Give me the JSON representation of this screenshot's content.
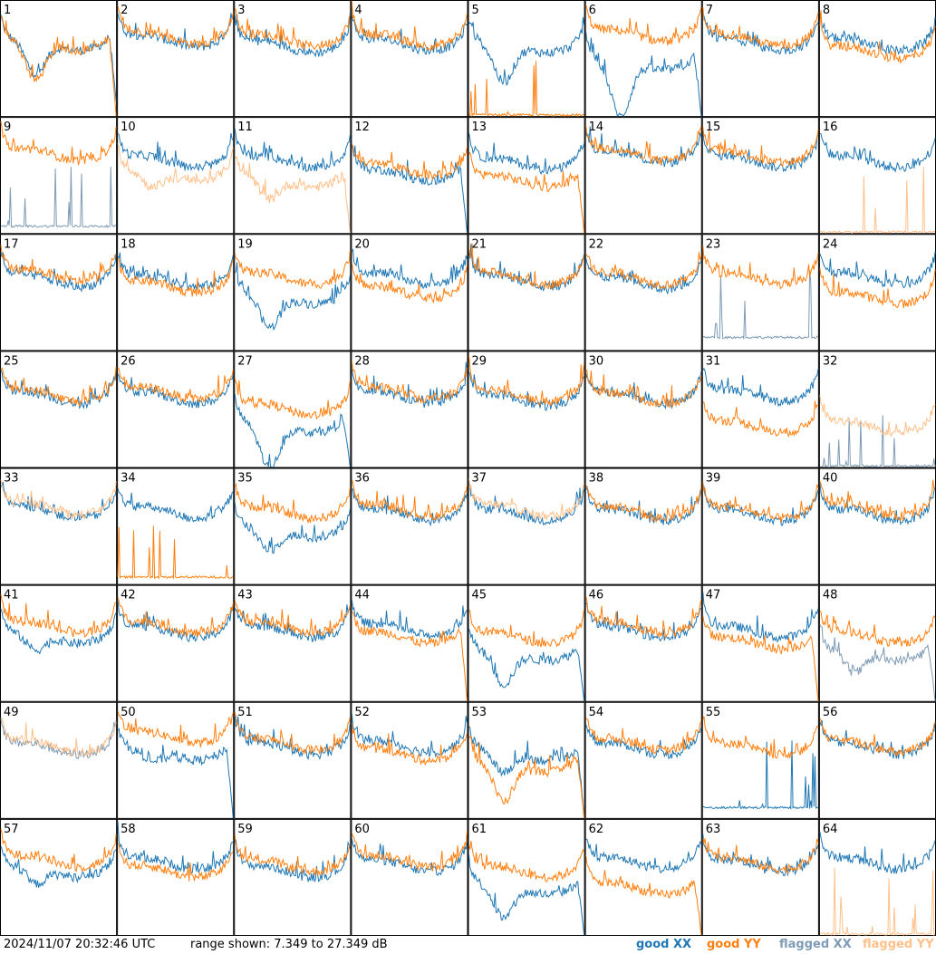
{
  "footer": {
    "timestamp": "2024/11/07 20:32:46 UTC",
    "range_text": "range shown: 7.349 to 27.349 dB"
  },
  "legend": [
    {
      "label": "good XX",
      "color": "#1f77b4"
    },
    {
      "label": "good YY",
      "color": "#ff7f0e"
    },
    {
      "label": "flagged XX",
      "color": "#7f9bb5"
    },
    {
      "label": "flagged YY",
      "color": "#ffc08a"
    }
  ],
  "chart_data": {
    "type": "line",
    "layout": "8x8 small multiples",
    "ylim": [
      7.349,
      27.349
    ],
    "yunit": "dB",
    "panels": [
      {
        "id": "1",
        "xx": "good",
        "yy": "good",
        "xx_level": 0.62,
        "yy_level": 0.62,
        "xx_dip": 0.3,
        "yy_dip": 0.35,
        "xx_drop": 0.85,
        "yy_drop": 1.0
      },
      {
        "id": "2",
        "xx": "good",
        "yy": "good",
        "xx_level": 0.65,
        "yy_level": 0.68,
        "xx_dip": 0,
        "yy_dip": 0,
        "xx_drop": 0,
        "yy_drop": 0
      },
      {
        "id": "3",
        "xx": "good",
        "yy": "good",
        "xx_level": 0.6,
        "yy_level": 0.66,
        "xx_dip": 0,
        "yy_dip": 0,
        "xx_drop": 0,
        "yy_drop": 0
      },
      {
        "id": "4",
        "xx": "good",
        "yy": "good",
        "xx_level": 0.62,
        "yy_level": 0.66,
        "xx_dip": 0,
        "yy_dip": 0,
        "xx_drop": 0,
        "yy_drop": 0
      },
      {
        "id": "5",
        "xx": "good",
        "yy": "good",
        "xx_level": 0.6,
        "yy_level": 0.0,
        "xx_dip": 0.35,
        "yy_dip": 0,
        "xx_drop": 0,
        "yy_drop": 0
      },
      {
        "id": "6",
        "xx": "good",
        "yy": "good",
        "xx_level": 0.45,
        "yy_level": 0.7,
        "xx_dip": 0.5,
        "yy_dip": 0,
        "xx_drop": 1.0,
        "yy_drop": 0
      },
      {
        "id": "7",
        "xx": "good",
        "yy": "good",
        "xx_level": 0.62,
        "yy_level": 0.66,
        "xx_dip": 0,
        "yy_dip": 0,
        "xx_drop": 0,
        "yy_drop": 0
      },
      {
        "id": "8",
        "xx": "good",
        "yy": "good",
        "xx_level": 0.62,
        "yy_level": 0.55,
        "xx_dip": 0,
        "yy_dip": 0,
        "xx_drop": 0,
        "yy_drop": 0
      },
      {
        "id": "9",
        "xx": "flagged",
        "yy": "good",
        "xx_level": 0.05,
        "yy_level": 0.68,
        "xx_dip": 0,
        "yy_dip": 0,
        "xx_drop": 0,
        "yy_drop": 0
      },
      {
        "id": "10",
        "xx": "good",
        "yy": "flagged",
        "xx_level": 0.62,
        "yy_level": 0.5,
        "xx_dip": 0,
        "yy_dip": 0.15,
        "xx_drop": 0,
        "yy_drop": 0
      },
      {
        "id": "11",
        "xx": "good",
        "yy": "flagged",
        "xx_level": 0.62,
        "yy_level": 0.45,
        "xx_dip": 0,
        "yy_dip": 0.2,
        "xx_drop": 0,
        "yy_drop": 1.0
      },
      {
        "id": "12",
        "xx": "good",
        "yy": "good",
        "xx_level": 0.5,
        "yy_level": 0.55,
        "xx_dip": 0,
        "yy_dip": 0,
        "xx_drop": 1.0,
        "yy_drop": 0
      },
      {
        "id": "13",
        "xx": "good",
        "yy": "good",
        "xx_level": 0.6,
        "yy_level": 0.45,
        "xx_dip": 0,
        "yy_dip": 0,
        "xx_drop": 0,
        "yy_drop": 1.0
      },
      {
        "id": "14",
        "xx": "good",
        "yy": "good",
        "xx_level": 0.66,
        "yy_level": 0.68,
        "xx_dip": 0,
        "yy_dip": 0,
        "xx_drop": 0,
        "yy_drop": 0
      },
      {
        "id": "15",
        "xx": "good",
        "yy": "good",
        "xx_level": 0.62,
        "yy_level": 0.66,
        "xx_dip": 0,
        "yy_dip": 0,
        "xx_drop": 0,
        "yy_drop": 0
      },
      {
        "id": "16",
        "xx": "good",
        "yy": "flagged",
        "xx_level": 0.62,
        "yy_level": 0.0,
        "xx_dip": 0,
        "yy_dip": 0,
        "xx_drop": 0,
        "yy_drop": 0
      },
      {
        "id": "17",
        "xx": "good",
        "yy": "good",
        "xx_level": 0.6,
        "yy_level": 0.65,
        "xx_dip": 0,
        "yy_dip": 0,
        "xx_drop": 0,
        "yy_drop": 0
      },
      {
        "id": "18",
        "xx": "good",
        "yy": "good",
        "xx_level": 0.6,
        "yy_level": 0.55,
        "xx_dip": 0,
        "yy_dip": 0,
        "xx_drop": 0,
        "yy_drop": 0
      },
      {
        "id": "19",
        "xx": "good",
        "yy": "good",
        "xx_level": 0.45,
        "yy_level": 0.62,
        "xx_dip": 0.3,
        "yy_dip": 0,
        "xx_drop": 0,
        "yy_drop": 0
      },
      {
        "id": "20",
        "xx": "good",
        "yy": "good",
        "xx_level": 0.62,
        "yy_level": 0.5,
        "xx_dip": 0,
        "yy_dip": 0,
        "xx_drop": 0,
        "yy_drop": 0
      },
      {
        "id": "21",
        "xx": "good",
        "yy": "good",
        "xx_level": 0.6,
        "yy_level": 0.62,
        "xx_dip": 0,
        "yy_dip": 0,
        "xx_drop": 0,
        "yy_drop": 0
      },
      {
        "id": "22",
        "xx": "good",
        "yy": "good",
        "xx_level": 0.58,
        "yy_level": 0.62,
        "xx_dip": 0,
        "yy_dip": 0,
        "xx_drop": 0,
        "yy_drop": 0
      },
      {
        "id": "23",
        "xx": "flagged",
        "yy": "good",
        "xx_level": 0.1,
        "yy_level": 0.62,
        "xx_dip": 0,
        "yy_dip": 0,
        "xx_drop": 0,
        "yy_drop": 0
      },
      {
        "id": "24",
        "xx": "good",
        "yy": "good",
        "xx_level": 0.62,
        "yy_level": 0.45,
        "xx_dip": 0,
        "yy_dip": 0,
        "xx_drop": 0,
        "yy_drop": 0
      },
      {
        "id": "25",
        "xx": "good",
        "yy": "good",
        "xx_level": 0.6,
        "yy_level": 0.62,
        "xx_dip": 0,
        "yy_dip": 0,
        "xx_drop": 0,
        "yy_drop": 0
      },
      {
        "id": "26",
        "xx": "good",
        "yy": "good",
        "xx_level": 0.6,
        "yy_level": 0.64,
        "xx_dip": 0,
        "yy_dip": 0,
        "xx_drop": 0,
        "yy_drop": 0
      },
      {
        "id": "27",
        "xx": "good",
        "yy": "good",
        "xx_level": 0.35,
        "yy_level": 0.5,
        "xx_dip": 0.4,
        "yy_dip": 0,
        "xx_drop": 1.0,
        "yy_drop": 0
      },
      {
        "id": "28",
        "xx": "good",
        "yy": "good",
        "xx_level": 0.6,
        "yy_level": 0.64,
        "xx_dip": 0,
        "yy_dip": 0,
        "xx_drop": 0,
        "yy_drop": 0
      },
      {
        "id": "29",
        "xx": "good",
        "yy": "good",
        "xx_level": 0.58,
        "yy_level": 0.62,
        "xx_dip": 0,
        "yy_dip": 0,
        "xx_drop": 0,
        "yy_drop": 0
      },
      {
        "id": "30",
        "xx": "good",
        "yy": "good",
        "xx_level": 0.6,
        "yy_level": 0.6,
        "xx_dip": 0,
        "yy_dip": 0,
        "xx_drop": 0,
        "yy_drop": 0
      },
      {
        "id": "31",
        "xx": "good",
        "yy": "good",
        "xx_level": 0.62,
        "yy_level": 0.35,
        "xx_dip": 0,
        "yy_dip": 0,
        "xx_drop": 0,
        "yy_drop": 0
      },
      {
        "id": "32",
        "xx": "flagged",
        "yy": "flagged",
        "xx_level": 0.0,
        "yy_level": 0.35,
        "xx_dip": 0,
        "yy_dip": 0,
        "xx_drop": 0,
        "yy_drop": 0
      },
      {
        "id": "33",
        "xx": "good",
        "yy": "flagged",
        "xx_level": 0.62,
        "yy_level": 0.65,
        "xx_dip": 0,
        "yy_dip": 0,
        "xx_drop": 0,
        "yy_drop": 0
      },
      {
        "id": "34",
        "xx": "good",
        "yy": "good",
        "xx_level": 0.62,
        "yy_level": 0.05,
        "xx_dip": 0,
        "yy_dip": 0,
        "xx_drop": 0,
        "yy_drop": 0
      },
      {
        "id": "35",
        "xx": "good",
        "yy": "good",
        "xx_level": 0.45,
        "yy_level": 0.62,
        "xx_dip": 0.2,
        "yy_dip": 0,
        "xx_drop": 0,
        "yy_drop": 0
      },
      {
        "id": "36",
        "xx": "good",
        "yy": "good",
        "xx_level": 0.6,
        "yy_level": 0.64,
        "xx_dip": 0,
        "yy_dip": 0,
        "xx_drop": 0,
        "yy_drop": 0
      },
      {
        "id": "37",
        "xx": "good",
        "yy": "flagged",
        "xx_level": 0.6,
        "yy_level": 0.64,
        "xx_dip": 0,
        "yy_dip": 0,
        "xx_drop": 0,
        "yy_drop": 0
      },
      {
        "id": "38",
        "xx": "good",
        "yy": "good",
        "xx_level": 0.6,
        "yy_level": 0.62,
        "xx_dip": 0,
        "yy_dip": 0,
        "xx_drop": 0,
        "yy_drop": 0
      },
      {
        "id": "39",
        "xx": "good",
        "yy": "good",
        "xx_level": 0.6,
        "yy_level": 0.62,
        "xx_dip": 0,
        "yy_dip": 0,
        "xx_drop": 0,
        "yy_drop": 0
      },
      {
        "id": "40",
        "xx": "good",
        "yy": "good",
        "xx_level": 0.6,
        "yy_level": 0.64,
        "xx_dip": 0,
        "yy_dip": 0,
        "xx_drop": 0,
        "yy_drop": 0
      },
      {
        "id": "41",
        "xx": "good",
        "yy": "good",
        "xx_level": 0.55,
        "yy_level": 0.64,
        "xx_dip": 0.15,
        "yy_dip": 0,
        "xx_drop": 0,
        "yy_drop": 0
      },
      {
        "id": "42",
        "xx": "good",
        "yy": "good",
        "xx_level": 0.6,
        "yy_level": 0.64,
        "xx_dip": 0,
        "yy_dip": 0,
        "xx_drop": 0,
        "yy_drop": 0
      },
      {
        "id": "43",
        "xx": "good",
        "yy": "good",
        "xx_level": 0.6,
        "yy_level": 0.64,
        "xx_dip": 0,
        "yy_dip": 0,
        "xx_drop": 0,
        "yy_drop": 0
      },
      {
        "id": "44",
        "xx": "good",
        "yy": "good",
        "xx_level": 0.62,
        "yy_level": 0.55,
        "xx_dip": 0,
        "yy_dip": 0,
        "xx_drop": 0,
        "yy_drop": 1.0
      },
      {
        "id": "45",
        "xx": "good",
        "yy": "good",
        "xx_level": 0.4,
        "yy_level": 0.55,
        "xx_dip": 0.3,
        "yy_dip": 0,
        "xx_drop": 1.0,
        "yy_drop": 0
      },
      {
        "id": "46",
        "xx": "good",
        "yy": "good",
        "xx_level": 0.6,
        "yy_level": 0.64,
        "xx_dip": 0,
        "yy_dip": 0,
        "xx_drop": 0,
        "yy_drop": 0
      },
      {
        "id": "47",
        "xx": "good",
        "yy": "good",
        "xx_level": 0.6,
        "yy_level": 0.5,
        "xx_dip": 0,
        "yy_dip": 0,
        "xx_drop": 0,
        "yy_drop": 1.0
      },
      {
        "id": "48",
        "xx": "flagged",
        "yy": "good",
        "xx_level": 0.4,
        "yy_level": 0.55,
        "xx_dip": 0.2,
        "yy_dip": 0,
        "xx_drop": 1.0,
        "yy_drop": 0
      },
      {
        "id": "49",
        "xx": "flagged",
        "yy": "flagged",
        "xx_level": 0.6,
        "yy_level": 0.62,
        "xx_dip": 0,
        "yy_dip": 0,
        "xx_drop": 0,
        "yy_drop": 0
      },
      {
        "id": "50",
        "xx": "good",
        "yy": "good",
        "xx_level": 0.55,
        "yy_level": 0.7,
        "xx_dip": 0.1,
        "yy_dip": 0,
        "xx_drop": 1.0,
        "yy_drop": 0
      },
      {
        "id": "51",
        "xx": "good",
        "yy": "good",
        "xx_level": 0.6,
        "yy_level": 0.64,
        "xx_dip": 0,
        "yy_dip": 0,
        "xx_drop": 0,
        "yy_drop": 0
      },
      {
        "id": "52",
        "xx": "good",
        "yy": "good",
        "xx_level": 0.62,
        "yy_level": 0.55,
        "xx_dip": 0,
        "yy_dip": 0,
        "xx_drop": 0,
        "yy_drop": 0
      },
      {
        "id": "53",
        "xx": "good",
        "yy": "good",
        "xx_level": 0.55,
        "yy_level": 0.45,
        "xx_dip": 0.2,
        "yy_dip": 0.35,
        "xx_drop": 1.0,
        "yy_drop": 1.0
      },
      {
        "id": "54",
        "xx": "good",
        "yy": "good",
        "xx_level": 0.6,
        "yy_level": 0.64,
        "xx_dip": 0,
        "yy_dip": 0,
        "xx_drop": 0,
        "yy_drop": 0
      },
      {
        "id": "55",
        "xx": "good",
        "yy": "good",
        "xx_level": 0.08,
        "yy_level": 0.6,
        "xx_dip": 0,
        "yy_dip": 0,
        "xx_drop": 0,
        "yy_drop": 0
      },
      {
        "id": "56",
        "xx": "good",
        "yy": "good",
        "xx_level": 0.6,
        "yy_level": 0.62,
        "xx_dip": 0,
        "yy_dip": 0,
        "xx_drop": 0,
        "yy_drop": 0
      },
      {
        "id": "57",
        "xx": "good",
        "yy": "good",
        "xx_level": 0.55,
        "yy_level": 0.64,
        "xx_dip": 0.15,
        "yy_dip": 0,
        "xx_drop": 0,
        "yy_drop": 0
      },
      {
        "id": "58",
        "xx": "good",
        "yy": "good",
        "xx_level": 0.62,
        "yy_level": 0.55,
        "xx_dip": 0,
        "yy_dip": 0,
        "xx_drop": 0,
        "yy_drop": 0
      },
      {
        "id": "59",
        "xx": "good",
        "yy": "good",
        "xx_level": 0.55,
        "yy_level": 0.6,
        "xx_dip": 0,
        "yy_dip": 0,
        "xx_drop": 0,
        "yy_drop": 0
      },
      {
        "id": "60",
        "xx": "good",
        "yy": "good",
        "xx_level": 0.6,
        "yy_level": 0.64,
        "xx_dip": 0,
        "yy_dip": 0,
        "xx_drop": 0,
        "yy_drop": 0
      },
      {
        "id": "61",
        "xx": "good",
        "yy": "good",
        "xx_level": 0.4,
        "yy_level": 0.55,
        "xx_dip": 0.3,
        "yy_dip": 0,
        "xx_drop": 1.0,
        "yy_drop": 0
      },
      {
        "id": "62",
        "xx": "good",
        "yy": "good",
        "xx_level": 0.62,
        "yy_level": 0.4,
        "xx_dip": 0,
        "yy_dip": 0,
        "xx_drop": 0,
        "yy_drop": 1.0
      },
      {
        "id": "63",
        "xx": "good",
        "yy": "good",
        "xx_level": 0.6,
        "yy_level": 0.62,
        "xx_dip": 0,
        "yy_dip": 0,
        "xx_drop": 0,
        "yy_drop": 0
      },
      {
        "id": "64",
        "xx": "good",
        "yy": "flagged",
        "xx_level": 0.62,
        "yy_level": 0.0,
        "xx_dip": 0,
        "yy_dip": 0,
        "xx_drop": 0,
        "yy_drop": 0
      }
    ]
  }
}
